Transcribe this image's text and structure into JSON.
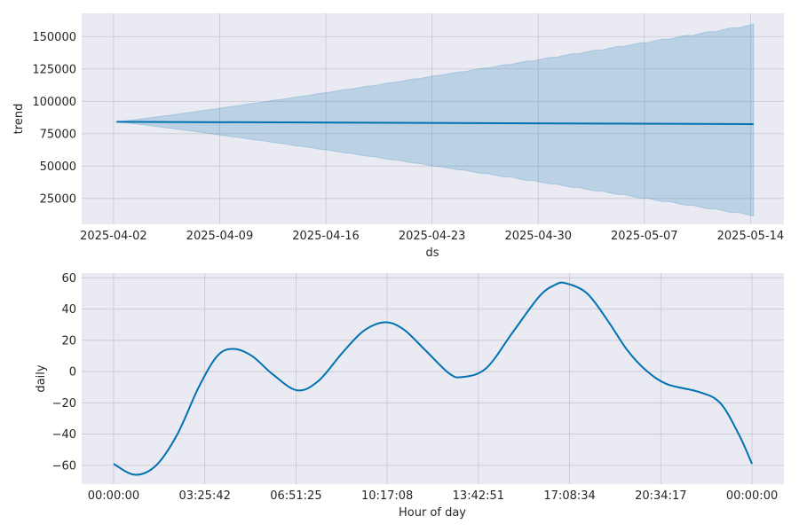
{
  "chart_data": [
    {
      "type": "line",
      "xlabel": "ds",
      "ylabel": "trend",
      "x_tick_labels": [
        "2025-04-02",
        "2025-04-09",
        "2025-04-16",
        "2025-04-23",
        "2025-04-30",
        "2025-05-07",
        "2025-05-14"
      ],
      "x_ticks_day": [
        0,
        7,
        14,
        21,
        28,
        35,
        42
      ],
      "xlim_day": [
        -2.1,
        44.2
      ],
      "ylim": [
        5000,
        168000
      ],
      "y_ticks": [
        25000,
        50000,
        75000,
        100000,
        125000,
        150000
      ],
      "y_tick_labels": [
        "25000",
        "50000",
        "75000",
        "100000",
        "125000",
        "150000"
      ],
      "trend": {
        "x_start_day": 0.2,
        "x_end_day": 42.2,
        "y_start": 84200,
        "y_end": 82400
      },
      "uncertainty": {
        "upper_start": 84200,
        "upper_end": 159000,
        "lower_start": 84200,
        "lower_end": 12000
      },
      "grid": true,
      "colors": {
        "line": "#0072b2",
        "band": "#0072b2",
        "background": "#eaeaf2"
      }
    },
    {
      "type": "line",
      "xlabel": "Hour of day",
      "ylabel": "daily",
      "x_tick_labels": [
        "00:00:00",
        "03:25:42",
        "06:51:25",
        "10:17:08",
        "13:42:51",
        "17:08:34",
        "20:34:17",
        "00:00:00"
      ],
      "x_ticks_hour": [
        0,
        3.4286,
        6.8571,
        10.2857,
        13.7143,
        17.1429,
        20.5714,
        24
      ],
      "xlim_hour": [
        -1.2,
        25.2
      ],
      "ylim": [
        -72,
        63
      ],
      "y_ticks": [
        -60,
        -40,
        -20,
        0,
        20,
        40,
        60
      ],
      "y_tick_labels": [
        "−60",
        "−40",
        "−20",
        "0",
        "20",
        "40",
        "60"
      ],
      "points": [
        [
          0,
          -59
        ],
        [
          0.8,
          -66
        ],
        [
          1.6,
          -60
        ],
        [
          2.4,
          -40
        ],
        [
          3.2,
          -10
        ],
        [
          3.9,
          10
        ],
        [
          4.5,
          14.5
        ],
        [
          5.2,
          10
        ],
        [
          6.0,
          -2
        ],
        [
          6.9,
          -12
        ],
        [
          7.7,
          -6
        ],
        [
          8.6,
          12
        ],
        [
          9.4,
          26
        ],
        [
          10.2,
          31.5
        ],
        [
          10.9,
          27
        ],
        [
          11.7,
          14
        ],
        [
          12.6,
          -1
        ],
        [
          13.1,
          -3.5
        ],
        [
          14.0,
          2
        ],
        [
          15.0,
          25
        ],
        [
          16.0,
          48
        ],
        [
          16.6,
          55.5
        ],
        [
          17.0,
          56.5
        ],
        [
          17.8,
          50
        ],
        [
          18.6,
          32
        ],
        [
          19.3,
          14
        ],
        [
          20.0,
          1
        ],
        [
          20.8,
          -8
        ],
        [
          22.0,
          -13
        ],
        [
          22.8,
          -20
        ],
        [
          23.5,
          -40
        ],
        [
          24,
          -59
        ]
      ],
      "grid": true,
      "colors": {
        "line": "#0072b2",
        "background": "#eaeaf2"
      }
    }
  ]
}
